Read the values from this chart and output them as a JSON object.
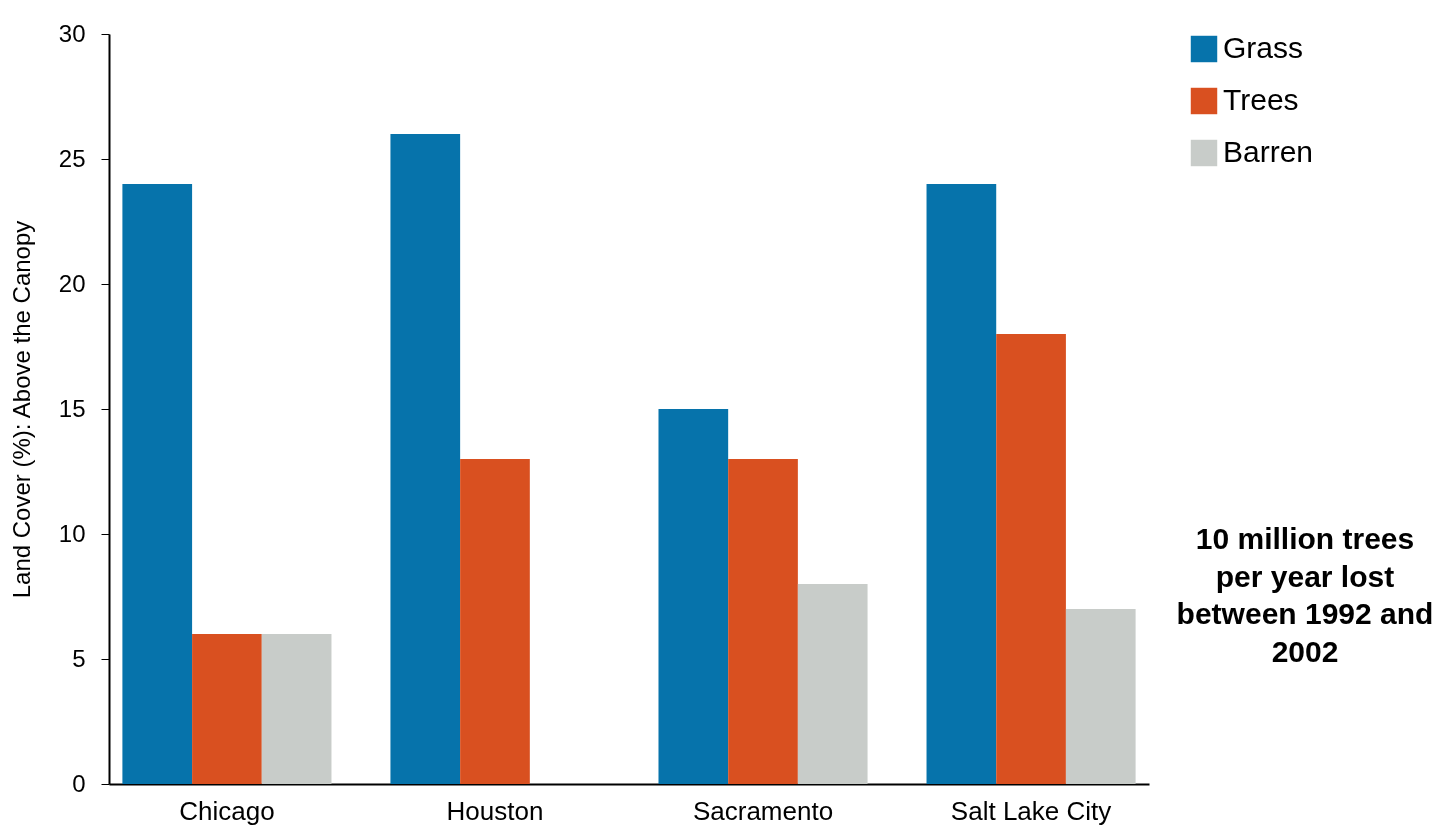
{
  "chart_data": {
    "type": "bar",
    "ylabel": "Land Cover (%):  Above the Canopy",
    "categories": [
      "Chicago",
      "Houston",
      "Sacramento",
      "Salt Lake City"
    ],
    "series": [
      {
        "name": "Grass",
        "color": "#0673ab",
        "values": [
          24,
          26,
          15,
          24
        ]
      },
      {
        "name": "Trees",
        "color": "#d95020",
        "values": [
          6,
          13,
          13,
          18
        ]
      },
      {
        "name": "Barren",
        "color": "#c8ccc9",
        "values": [
          6,
          null,
          8,
          7
        ]
      }
    ],
    "ylim": [
      0,
      30
    ],
    "yticks": [
      0,
      5,
      10,
      15,
      20,
      25,
      30
    ],
    "grid": false,
    "legend": "right",
    "annotations": [
      "10 million trees per year lost between 1992 and 2002"
    ]
  }
}
